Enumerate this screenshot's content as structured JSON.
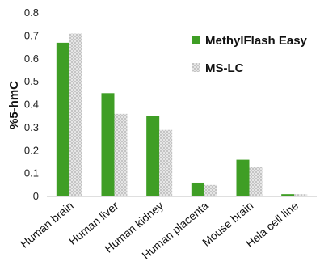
{
  "chart_data": {
    "type": "bar",
    "ylabel": "%5-hmC",
    "ylim": [
      0,
      0.8
    ],
    "yticks": [
      "0",
      "0.1",
      "0.2",
      "0.3",
      "0.4",
      "0.5",
      "0.6",
      "0.7",
      "0.8"
    ],
    "categories": [
      "Human brain",
      "Human liver",
      "Human kidney",
      "Human placenta",
      "Mouse brain",
      "Hela cell line"
    ],
    "series": [
      {
        "name": "MethylFlash Easy",
        "color": "#3f9e25",
        "pattern": "solid",
        "values": [
          0.67,
          0.45,
          0.35,
          0.06,
          0.16,
          0.01
        ]
      },
      {
        "name": "MS-LC",
        "color": "#d9d9d9",
        "pattern": "dotted-gray",
        "values": [
          0.71,
          0.36,
          0.29,
          0.05,
          0.13,
          0.01
        ]
      }
    ],
    "legend_position": "top-right",
    "grid": false
  }
}
